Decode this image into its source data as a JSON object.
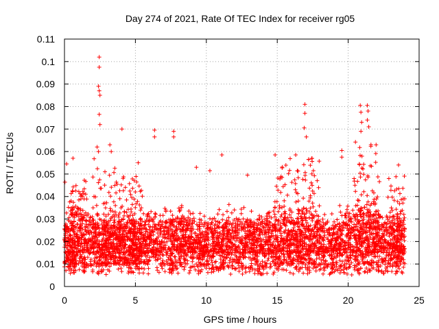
{
  "chart_data": {
    "type": "scatter",
    "title": "Day 274 of 2021, Rate Of TEC Index for receiver rg05",
    "xlabel": "GPS time / hours",
    "ylabel": "ROTI / TECUs",
    "xlim": [
      0,
      25
    ],
    "ylim": [
      0,
      0.11
    ],
    "x_ticks": [
      0,
      5,
      10,
      15,
      20,
      25
    ],
    "x_tick_labels": [
      "0",
      "5",
      "10",
      "15",
      "20",
      "25"
    ],
    "y_ticks": [
      0,
      0.01,
      0.02,
      0.03,
      0.04,
      0.05,
      0.06,
      0.07,
      0.08,
      0.09,
      0.1,
      0.11
    ],
    "y_tick_labels": [
      "0",
      "0.01",
      "0.02",
      "0.03",
      "0.04",
      "0.05",
      "0.06",
      "0.07",
      "0.08",
      "0.09",
      "0.1",
      "0.11"
    ],
    "grid": true,
    "marker": "+",
    "color": "#ff0000",
    "x_range_hours": [
      0,
      24
    ],
    "series": [
      {
        "name": "rg05",
        "baseline_profile": [
          {
            "x": 0.0,
            "y": 0.012
          },
          {
            "x": 1.0,
            "y": 0.02
          },
          {
            "x": 2.0,
            "y": 0.014
          },
          {
            "x": 3.0,
            "y": 0.013
          },
          {
            "x": 4.0,
            "y": 0.016
          },
          {
            "x": 5.0,
            "y": 0.015
          },
          {
            "x": 6.0,
            "y": 0.014
          },
          {
            "x": 7.0,
            "y": 0.015
          },
          {
            "x": 8.0,
            "y": 0.016
          },
          {
            "x": 9.0,
            "y": 0.014
          },
          {
            "x": 10.0,
            "y": 0.013
          },
          {
            "x": 11.0,
            "y": 0.015
          },
          {
            "x": 12.0,
            "y": 0.014
          },
          {
            "x": 13.0,
            "y": 0.014
          },
          {
            "x": 14.0,
            "y": 0.015
          },
          {
            "x": 15.0,
            "y": 0.016
          },
          {
            "x": 16.0,
            "y": 0.017
          },
          {
            "x": 17.0,
            "y": 0.02
          },
          {
            "x": 18.0,
            "y": 0.016
          },
          {
            "x": 19.0,
            "y": 0.014
          },
          {
            "x": 20.0,
            "y": 0.016
          },
          {
            "x": 21.0,
            "y": 0.022
          },
          {
            "x": 22.0,
            "y": 0.017
          },
          {
            "x": 23.0,
            "y": 0.015
          },
          {
            "x": 24.0,
            "y": 0.013
          }
        ],
        "notable_points": [
          {
            "x": 2.45,
            "y": 0.102
          },
          {
            "x": 2.45,
            "y": 0.0975
          },
          {
            "x": 2.4,
            "y": 0.089
          },
          {
            "x": 2.45,
            "y": 0.087
          },
          {
            "x": 2.5,
            "y": 0.085
          },
          {
            "x": 2.45,
            "y": 0.0765
          },
          {
            "x": 2.5,
            "y": 0.072
          },
          {
            "x": 2.3,
            "y": 0.062
          },
          {
            "x": 2.4,
            "y": 0.06
          },
          {
            "x": 3.2,
            "y": 0.063
          },
          {
            "x": 3.3,
            "y": 0.06
          },
          {
            "x": 4.05,
            "y": 0.07
          },
          {
            "x": 6.35,
            "y": 0.0695
          },
          {
            "x": 6.35,
            "y": 0.0665
          },
          {
            "x": 7.7,
            "y": 0.069
          },
          {
            "x": 7.7,
            "y": 0.0665
          },
          {
            "x": 16.95,
            "y": 0.081
          },
          {
            "x": 16.95,
            "y": 0.077
          },
          {
            "x": 16.9,
            "y": 0.0705
          },
          {
            "x": 17.05,
            "y": 0.0665
          },
          {
            "x": 20.85,
            "y": 0.0805
          },
          {
            "x": 20.9,
            "y": 0.0775
          },
          {
            "x": 20.95,
            "y": 0.073
          },
          {
            "x": 20.9,
            "y": 0.069
          },
          {
            "x": 21.35,
            "y": 0.0805
          },
          {
            "x": 21.4,
            "y": 0.078
          },
          {
            "x": 21.35,
            "y": 0.074
          },
          {
            "x": 21.45,
            "y": 0.071
          },
          {
            "x": 19.55,
            "y": 0.0605
          },
          {
            "x": 19.55,
            "y": 0.0575
          },
          {
            "x": 0.15,
            "y": 0.0545
          },
          {
            "x": 0.6,
            "y": 0.057
          },
          {
            "x": 11.1,
            "y": 0.0585
          },
          {
            "x": 9.3,
            "y": 0.053
          },
          {
            "x": 14.85,
            "y": 0.0585
          },
          {
            "x": 23.55,
            "y": 0.054
          },
          {
            "x": 16.3,
            "y": 0.0585
          },
          {
            "x": 12.9,
            "y": 0.0495
          },
          {
            "x": 5.2,
            "y": 0.055
          },
          {
            "x": 10.25,
            "y": 0.0515
          }
        ],
        "burst_regions": [
          {
            "x_start": 0.0,
            "x_end": 1.6,
            "y_peak": 0.048
          },
          {
            "x_start": 2.0,
            "x_end": 3.6,
            "y_peak": 0.058
          },
          {
            "x_start": 3.6,
            "x_end": 5.6,
            "y_peak": 0.05
          },
          {
            "x_start": 14.8,
            "x_end": 18.0,
            "y_peak": 0.058
          },
          {
            "x_start": 20.4,
            "x_end": 22.2,
            "y_peak": 0.065
          },
          {
            "x_start": 22.8,
            "x_end": 24.0,
            "y_peak": 0.05
          }
        ]
      }
    ]
  }
}
